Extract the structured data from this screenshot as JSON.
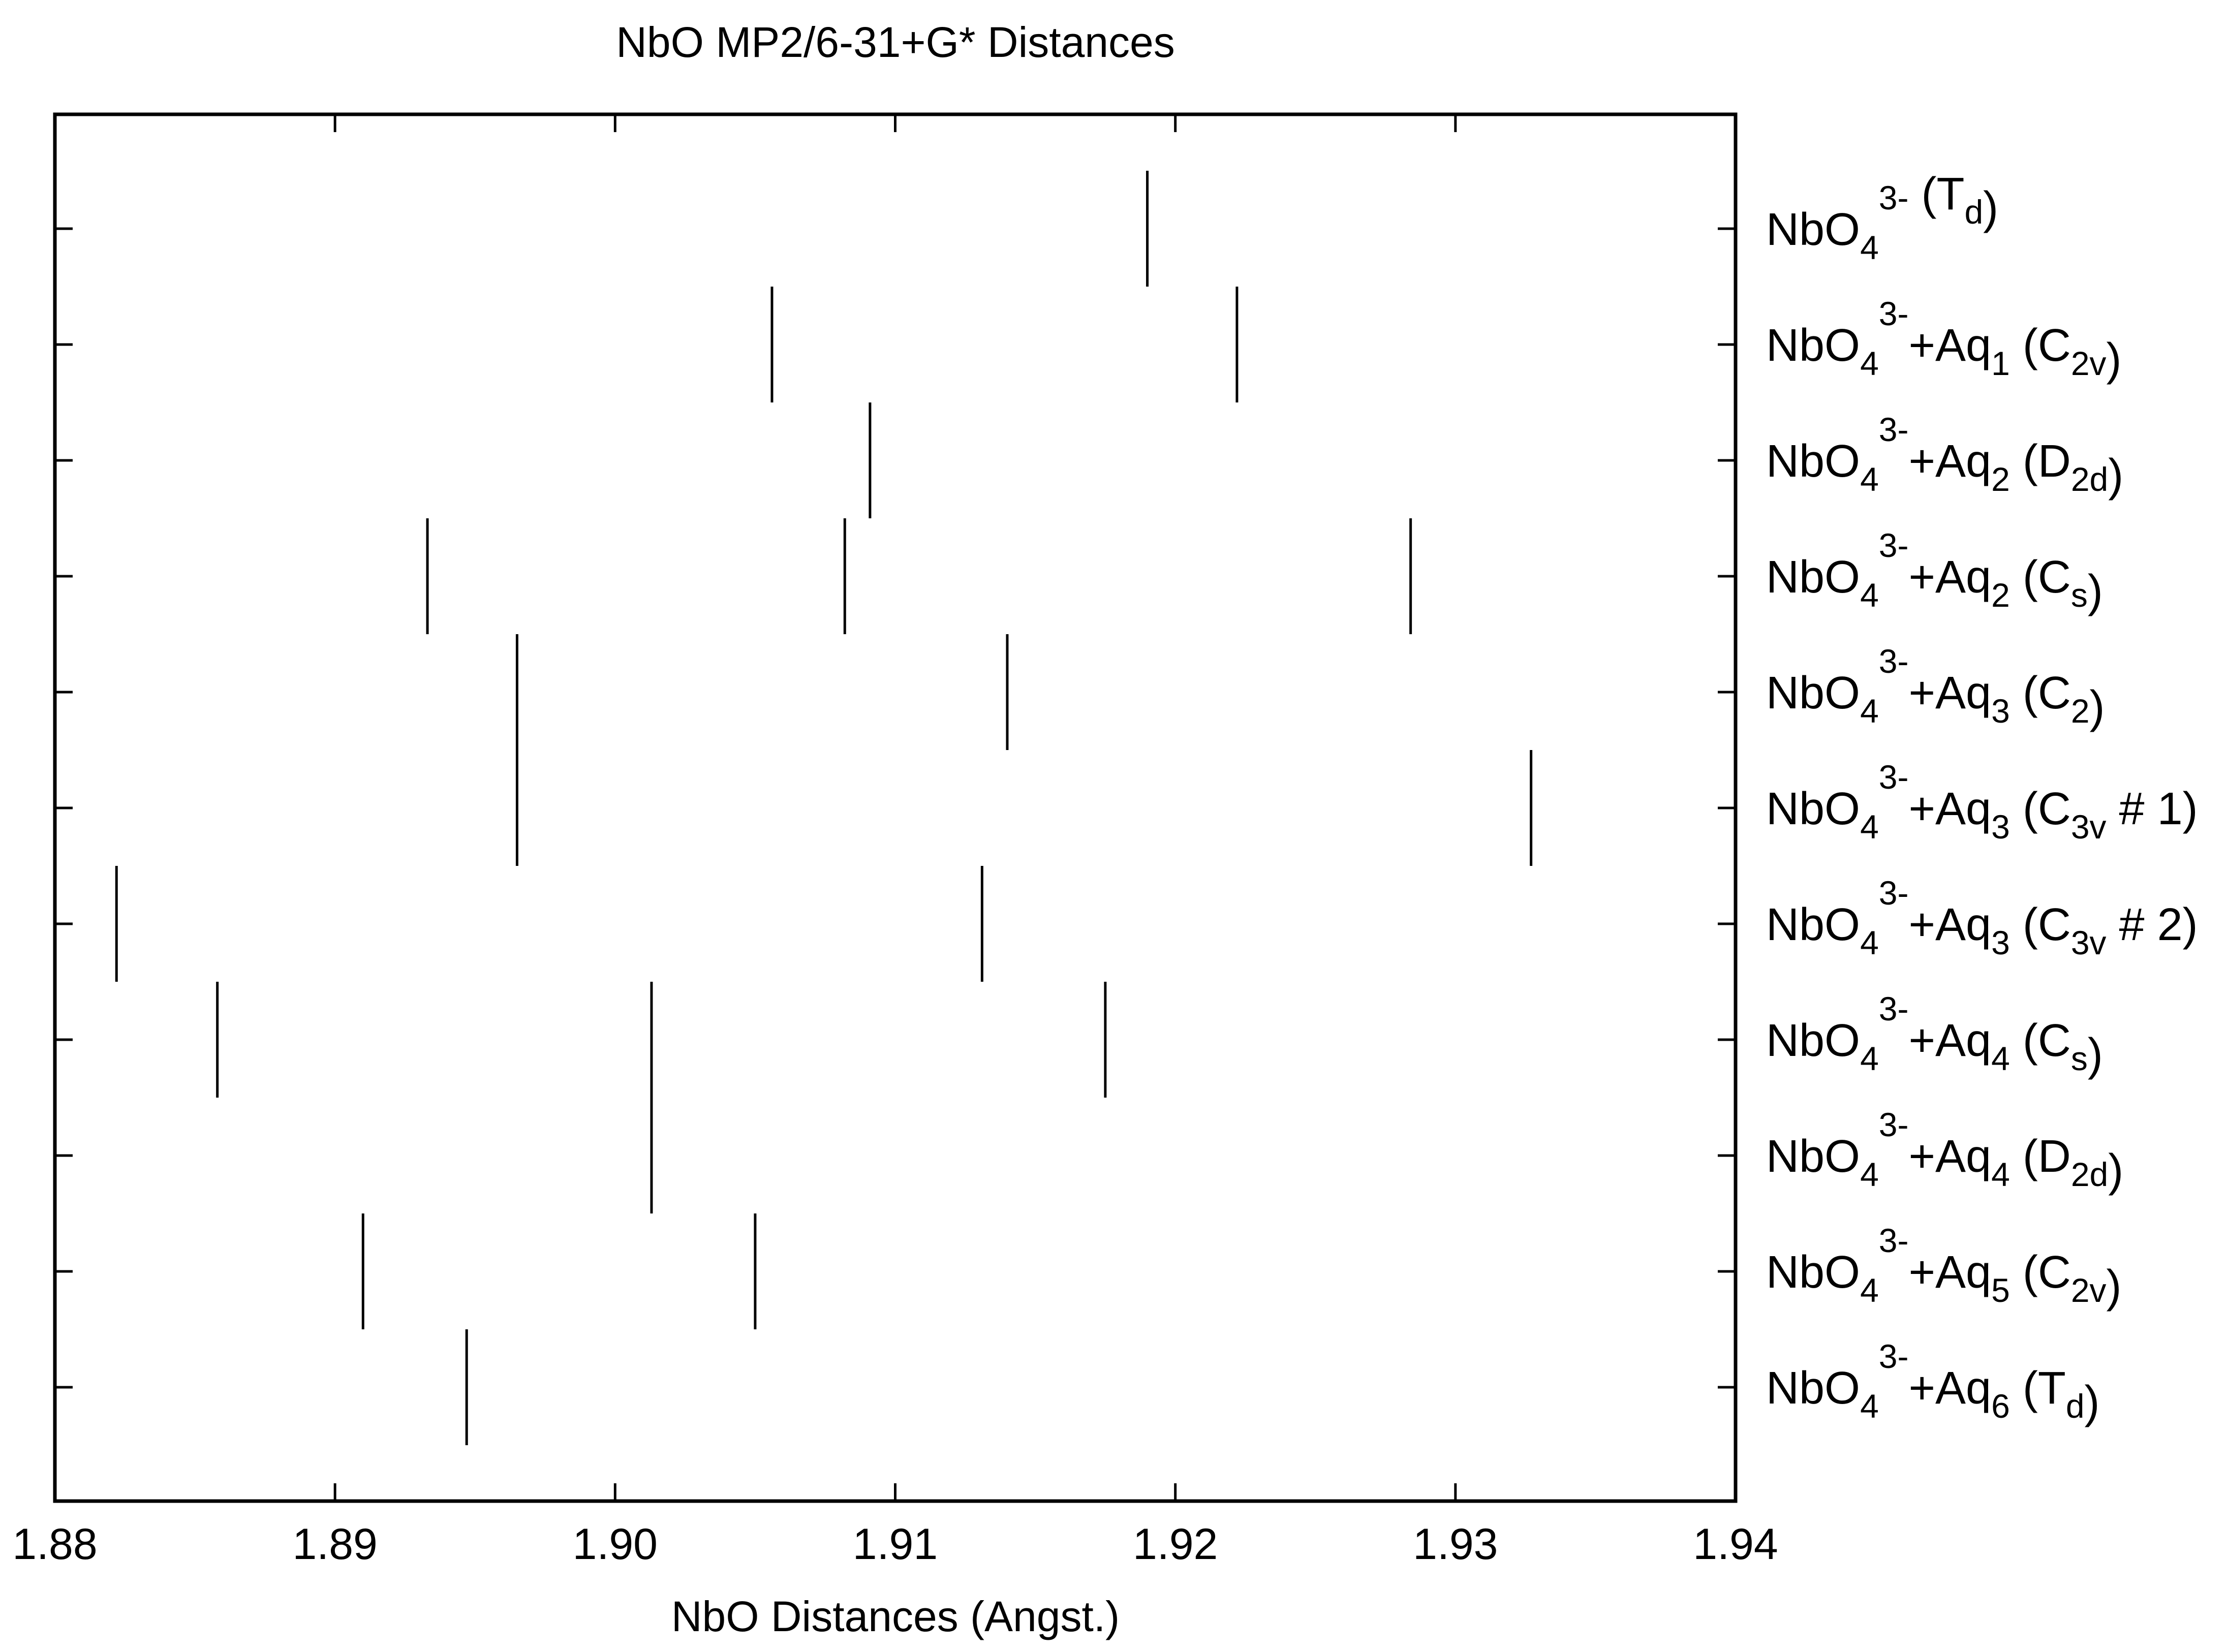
{
  "chart_data": {
    "type": "scatter",
    "title": "NbO MP2/6-31+G* Distances",
    "xlabel": "NbO Distances (Angst.)",
    "ylabel": "",
    "xlim": [
      1.88,
      1.94
    ],
    "xticks": [
      "1.88",
      "1.89",
      "1.90",
      "1.91",
      "1.92",
      "1.93",
      "1.94"
    ],
    "grid": false,
    "marker": "vertical-line",
    "categories": [
      {
        "base": "NbO",
        "sub1": "4",
        "sup": "3-",
        "plus": "",
        "aq": "",
        "aqsub": "",
        "sym": "T",
        "symsub": "d",
        "symtail": "",
        "values": [
          1.919
        ]
      },
      {
        "base": "NbO",
        "sub1": "4",
        "sup": "3-",
        "plus": "+",
        "aq": "Aq",
        "aqsub": "1",
        "sym": "C",
        "symsub": "2v",
        "symtail": "",
        "values": [
          1.9056,
          1.9222
        ]
      },
      {
        "base": "NbO",
        "sub1": "4",
        "sup": "3-",
        "plus": "+",
        "aq": "Aq",
        "aqsub": "2",
        "sym": "D",
        "symsub": "2d",
        "symtail": "",
        "values": [
          1.9091
        ]
      },
      {
        "base": "NbO",
        "sub1": "4",
        "sup": "3-",
        "plus": "+",
        "aq": "Aq",
        "aqsub": "2",
        "sym": "C",
        "symsub": "s",
        "symtail": "",
        "values": [
          1.8933,
          1.9082,
          1.9284
        ]
      },
      {
        "base": "NbO",
        "sub1": "4",
        "sup": "3-",
        "plus": "+",
        "aq": "Aq",
        "aqsub": "3",
        "sym": "C",
        "symsub": "2",
        "symtail": "",
        "values": [
          1.8965,
          1.914
        ]
      },
      {
        "base": "NbO",
        "sub1": "4",
        "sup": "3-",
        "plus": "+",
        "aq": "Aq",
        "aqsub": "3",
        "sym": "C",
        "symsub": "3v",
        "symtail": " # 1",
        "values": [
          1.8965,
          1.9327
        ]
      },
      {
        "base": "NbO",
        "sub1": "4",
        "sup": "3-",
        "plus": "+",
        "aq": "Aq",
        "aqsub": "3",
        "sym": "C",
        "symsub": "3v",
        "symtail": " # 2",
        "values": [
          1.8822,
          1.9131
        ]
      },
      {
        "base": "NbO",
        "sub1": "4",
        "sup": "3-",
        "plus": "+",
        "aq": "Aq",
        "aqsub": "4",
        "sym": "C",
        "symsub": "s",
        "symtail": "",
        "values": [
          1.8858,
          1.9013,
          1.9175
        ]
      },
      {
        "base": "NbO",
        "sub1": "4",
        "sup": "3-",
        "plus": "+",
        "aq": "Aq",
        "aqsub": "4",
        "sym": "D",
        "symsub": "2d",
        "symtail": "",
        "values": [
          1.9013
        ]
      },
      {
        "base": "NbO",
        "sub1": "4",
        "sup": "3-",
        "plus": "+",
        "aq": "Aq",
        "aqsub": "5",
        "sym": "C",
        "symsub": "2v",
        "symtail": "",
        "values": [
          1.891,
          1.905
        ]
      },
      {
        "base": "NbO",
        "sub1": "4",
        "sup": "3-",
        "plus": "+",
        "aq": "Aq",
        "aqsub": "6",
        "sym": "T",
        "symsub": "d",
        "symtail": "",
        "values": [
          1.8947
        ]
      }
    ]
  }
}
